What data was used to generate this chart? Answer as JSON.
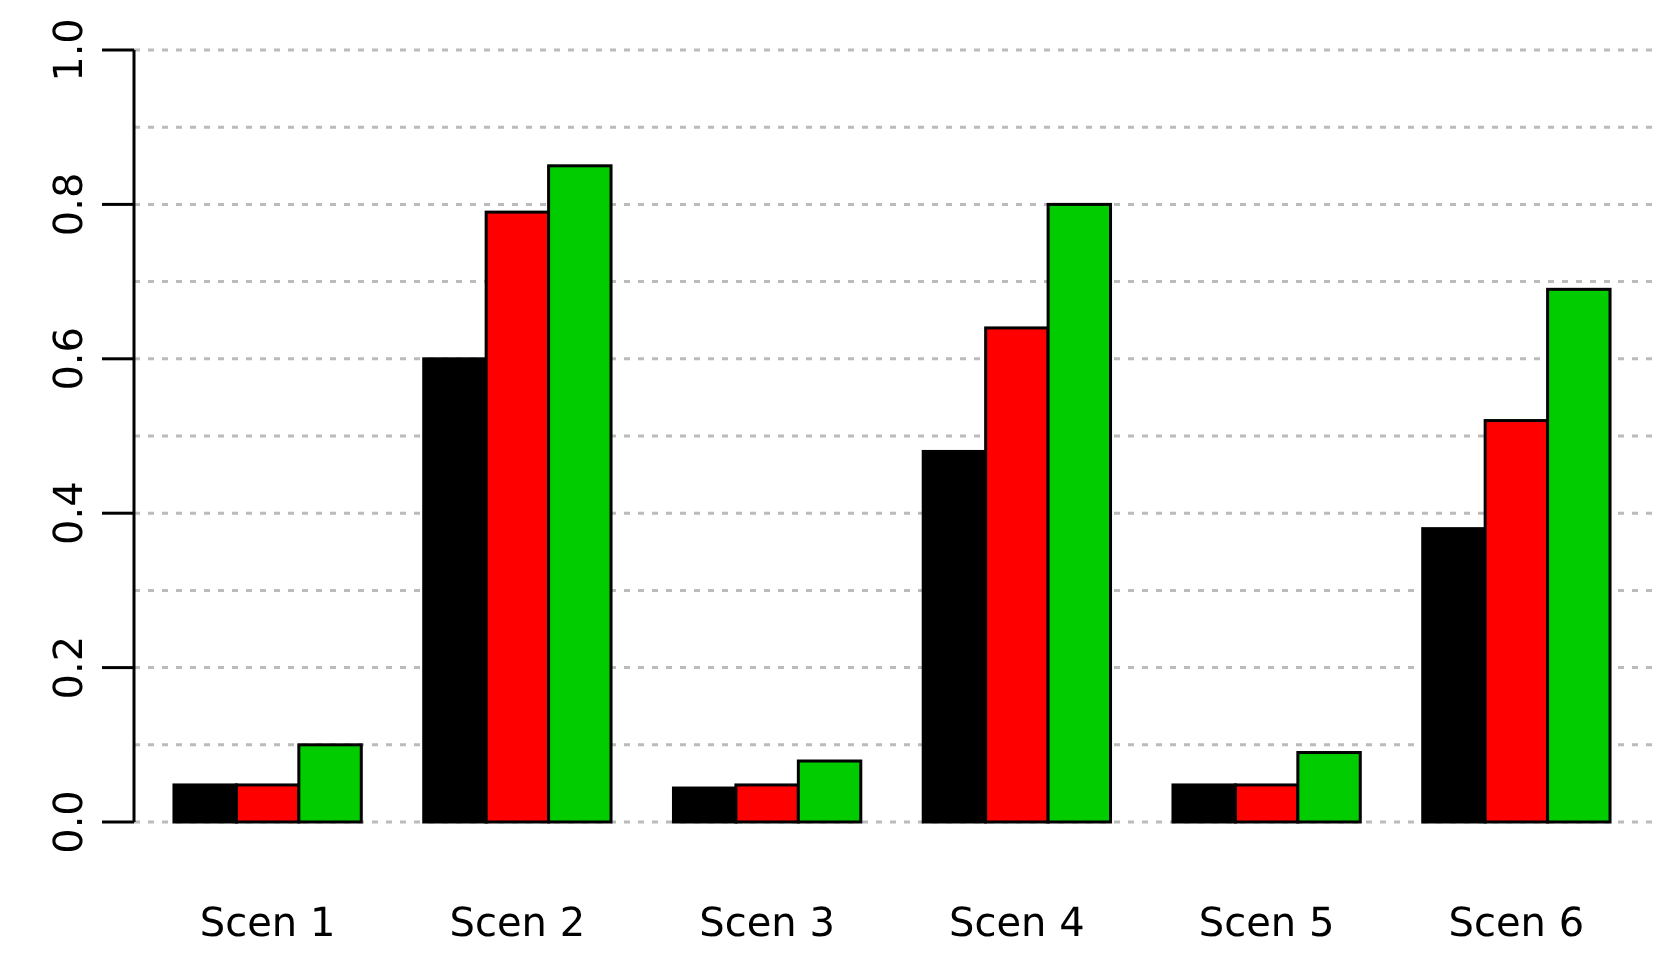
{
  "chart_data": {
    "type": "bar",
    "categories": [
      "Scen 1",
      "Scen 2",
      "Scen 3",
      "Scen 4",
      "Scen 5",
      "Scen 6"
    ],
    "series": [
      {
        "color": "#000000",
        "values": [
          0.048,
          0.6,
          0.044,
          0.48,
          0.048,
          0.38
        ]
      },
      {
        "color": "#ff0000",
        "values": [
          0.048,
          0.79,
          0.048,
          0.64,
          0.048,
          0.52
        ]
      },
      {
        "color": "#00cc00",
        "values": [
          0.1,
          0.85,
          0.079,
          0.8,
          0.09,
          0.69
        ]
      }
    ],
    "ylim": [
      0,
      1
    ],
    "yticks": [
      {
        "value": 0,
        "label": "0.0"
      },
      {
        "value": 0.1,
        "label": null
      },
      {
        "value": 0.2,
        "label": "0.2"
      },
      {
        "value": 0.3,
        "label": null
      },
      {
        "value": 0.4,
        "label": "0.4"
      },
      {
        "value": 0.5,
        "label": null
      },
      {
        "value": 0.6,
        "label": "0.6"
      },
      {
        "value": 0.7,
        "label": null
      },
      {
        "value": 0.8,
        "label": "0.8"
      },
      {
        "value": 0.9,
        "label": null
      },
      {
        "value": 1.0,
        "label": "1.0"
      }
    ],
    "grid": "y"
  }
}
